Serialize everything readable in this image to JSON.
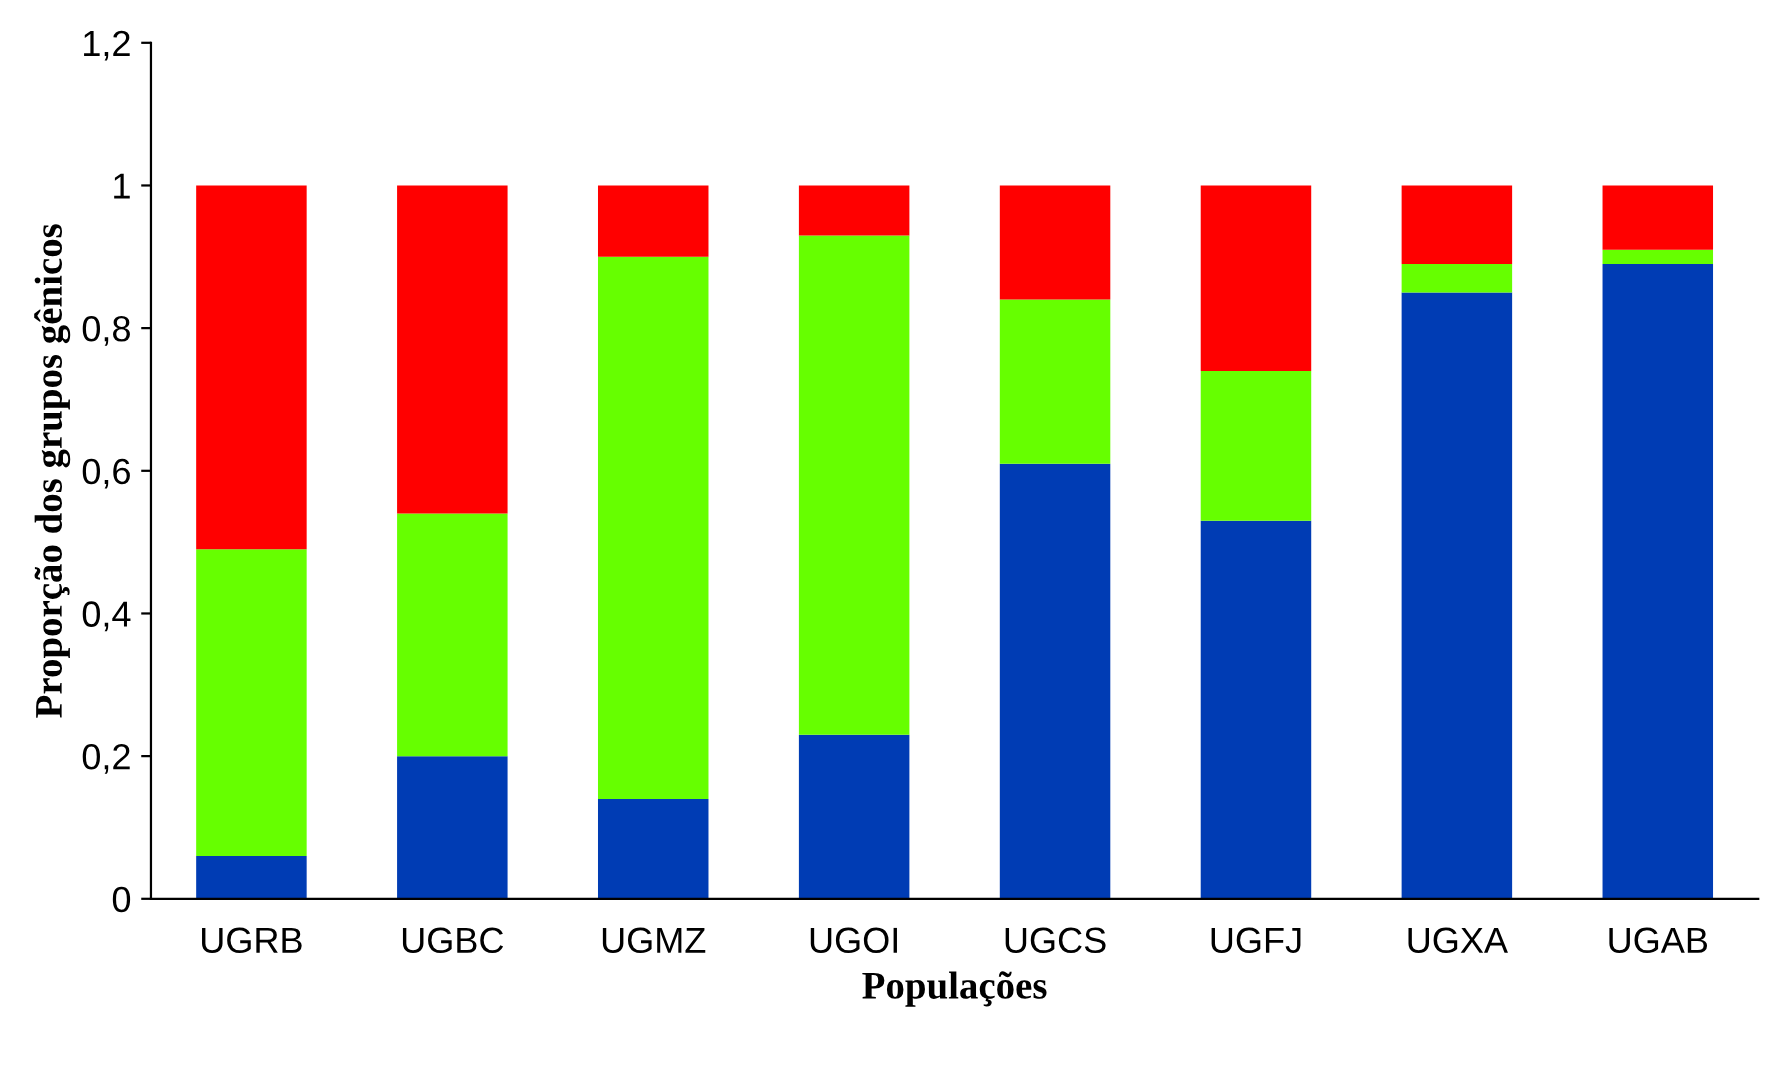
{
  "chart_data": {
    "type": "bar",
    "stacked": true,
    "xlabel": "Populações",
    "ylabel": "Proporção dos grupos gênicos",
    "categories": [
      "UGRB",
      "UGBC",
      "UGMZ",
      "UGOI",
      "UGCS",
      "UGFJ",
      "UGXA",
      "UGAB"
    ],
    "series": [
      {
        "color": "#003cb4",
        "values": [
          0.06,
          0.2,
          0.14,
          0.23,
          0.61,
          0.53,
          0.85,
          0.89
        ]
      },
      {
        "color": "#66ff00",
        "values": [
          0.43,
          0.34,
          0.76,
          0.7,
          0.23,
          0.21,
          0.04,
          0.02
        ]
      },
      {
        "color": "#ff0000",
        "values": [
          0.51,
          0.46,
          0.1,
          0.07,
          0.16,
          0.26,
          0.11,
          0.09
        ]
      }
    ],
    "ylim": [
      0,
      1.2
    ],
    "yticks": [
      0,
      {
        "value": 0.2,
        "label": "0,2"
      },
      {
        "value": 0.4,
        "label": "0,4"
      },
      {
        "value": 0.6,
        "label": "0,6"
      },
      {
        "value": 0.8,
        "label": "0,8"
      },
      1,
      {
        "value": 1.2,
        "label": "1,2"
      }
    ],
    "grid": false
  }
}
